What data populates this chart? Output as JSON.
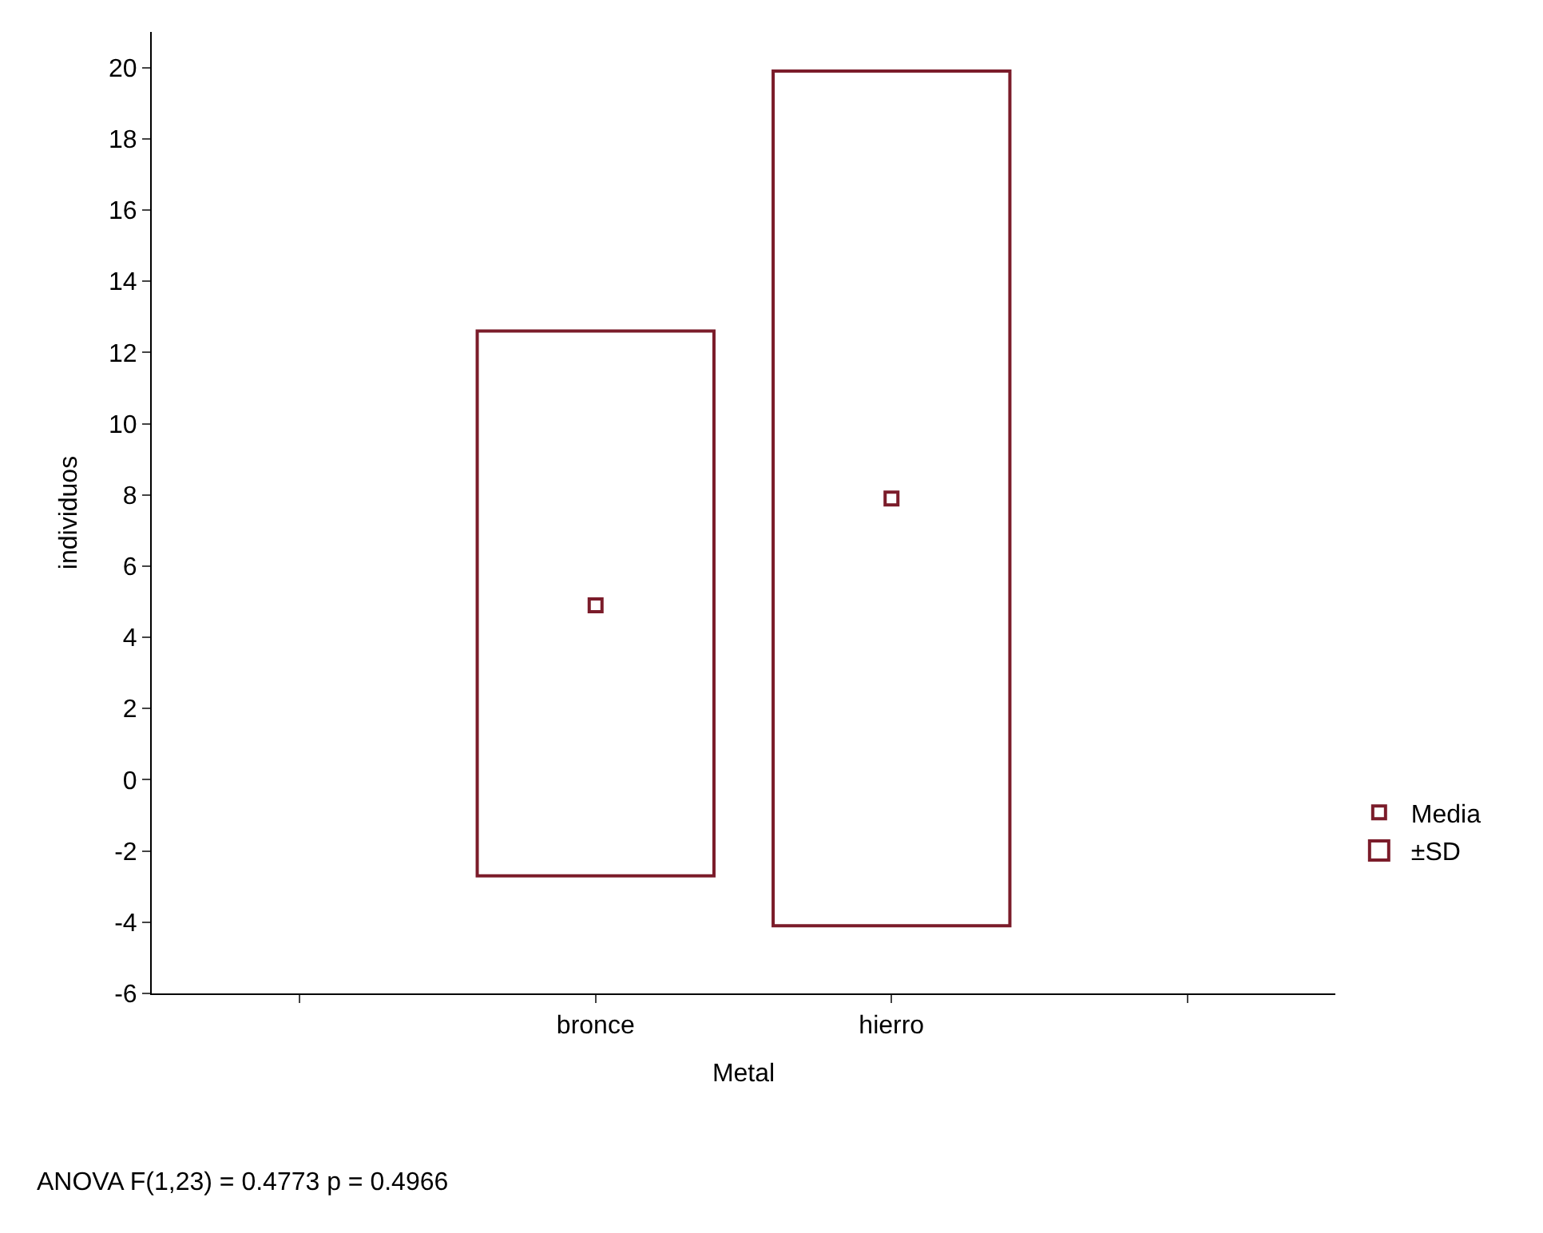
{
  "chart_data": {
    "type": "bar",
    "xlabel": "Metal",
    "ylabel": "individuos",
    "categories": [
      null,
      "bronce",
      "hierro",
      null
    ],
    "series": [
      {
        "name": "±SD",
        "color": "#7b1c2a",
        "values": [
          null,
          15.3,
          24.0,
          null
        ],
        "base": [
          null,
          -2.7,
          -4.1,
          null
        ]
      },
      {
        "name": "Media",
        "type": "scatter",
        "color": "#7b1c2a",
        "values": [
          null,
          4.9,
          7.9,
          null
        ]
      }
    ],
    "marker": "square",
    "ylim": [
      -6,
      21
    ],
    "yticks": [
      -6,
      -4,
      -2,
      0,
      2,
      4,
      6,
      8,
      10,
      12,
      14,
      16,
      18,
      20
    ],
    "legend": "bottom right",
    "annotations": [
      "ANOVA F(1,23) = 0.4773 p = 0.4966"
    ]
  }
}
